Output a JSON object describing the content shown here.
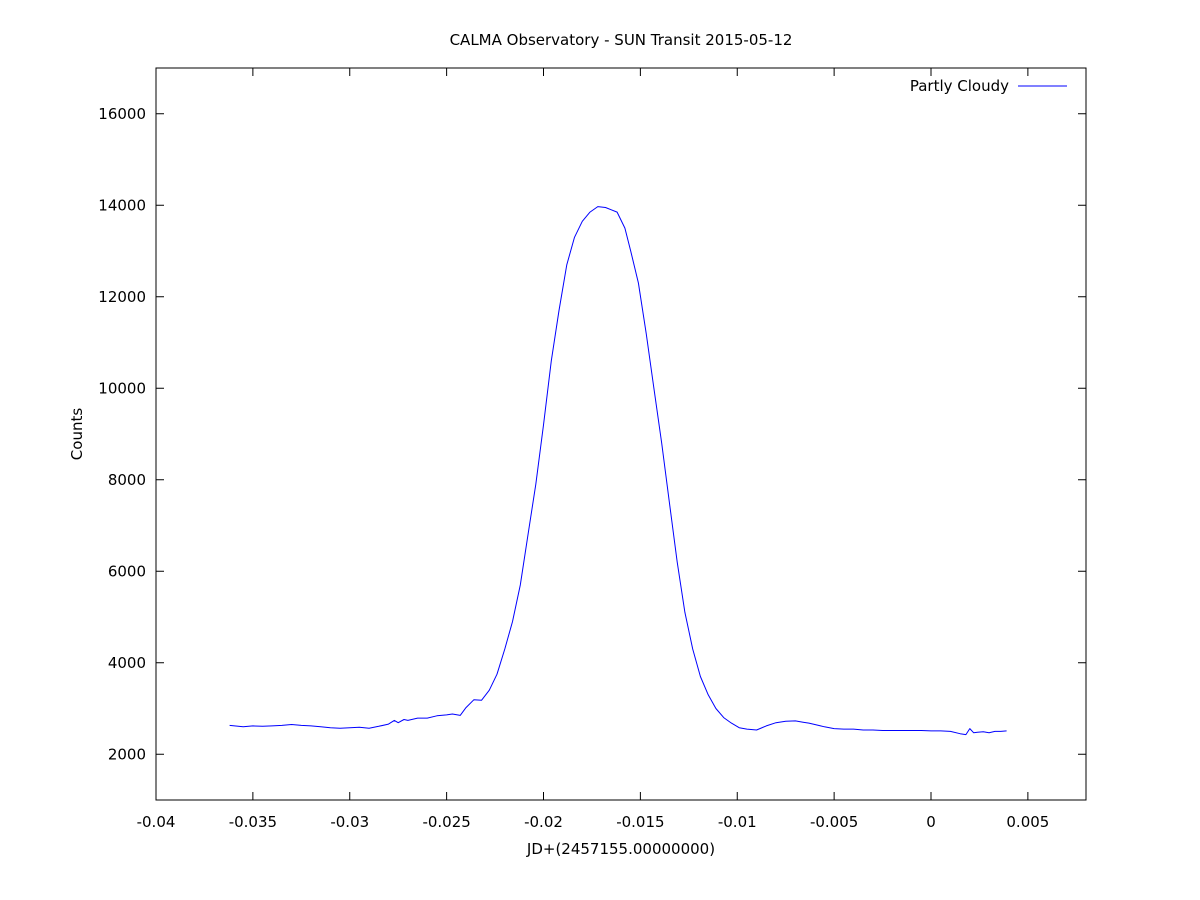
{
  "chart_data": {
    "type": "line",
    "title": "CALMA Observatory - SUN Transit 2015-05-12",
    "xlabel": "JD+(2457155.00000000)",
    "ylabel": "Counts",
    "xlim": [
      -0.04,
      0.008
    ],
    "ylim": [
      1000,
      17000
    ],
    "grid": false,
    "legend_position": "top-right",
    "x_ticks": [
      -0.04,
      -0.035,
      -0.03,
      -0.025,
      -0.02,
      -0.015,
      -0.01,
      -0.005,
      0,
      0.005
    ],
    "x_tick_labels": [
      "-0.04",
      "-0.035",
      "-0.03",
      "-0.025",
      "-0.02",
      "-0.015",
      "-0.01",
      "-0.005",
      "0",
      "0.005"
    ],
    "y_ticks": [
      2000,
      4000,
      6000,
      8000,
      10000,
      12000,
      14000,
      16000
    ],
    "y_tick_labels": [
      "2000",
      "4000",
      "6000",
      "8000",
      "10000",
      "12000",
      "14000",
      "16000"
    ],
    "series": [
      {
        "name": "Partly Cloudy",
        "color": "#0000ff",
        "x": [
          -0.0362,
          -0.0355,
          -0.035,
          -0.0345,
          -0.034,
          -0.0335,
          -0.033,
          -0.0325,
          -0.032,
          -0.0315,
          -0.031,
          -0.0305,
          -0.03,
          -0.0295,
          -0.029,
          -0.0285,
          -0.028,
          -0.0277,
          -0.0275,
          -0.0272,
          -0.027,
          -0.0265,
          -0.026,
          -0.0255,
          -0.025,
          -0.0247,
          -0.0243,
          -0.024,
          -0.0236,
          -0.0232,
          -0.0228,
          -0.0224,
          -0.022,
          -0.0216,
          -0.0212,
          -0.0208,
          -0.0204,
          -0.02,
          -0.0196,
          -0.0192,
          -0.0188,
          -0.0184,
          -0.018,
          -0.0176,
          -0.0172,
          -0.0168,
          -0.0165,
          -0.0162,
          -0.0158,
          -0.0155,
          -0.0151,
          -0.0147,
          -0.0143,
          -0.0139,
          -0.0135,
          -0.0131,
          -0.0127,
          -0.0123,
          -0.0119,
          -0.0115,
          -0.0111,
          -0.0107,
          -0.0103,
          -0.0099,
          -0.0095,
          -0.009,
          -0.0085,
          -0.008,
          -0.0075,
          -0.007,
          -0.0066,
          -0.0063,
          -0.006,
          -0.0057,
          -0.0055,
          -0.005,
          -0.0045,
          -0.004,
          -0.0035,
          -0.003,
          -0.0025,
          -0.002,
          -0.0015,
          -0.001,
          -0.0005,
          0,
          0.0005,
          0.001,
          0.0015,
          0.0018,
          0.002,
          0.0022,
          0.0024,
          0.0027,
          0.003,
          0.0033,
          0.0036,
          0.0039
        ],
        "y": [
          2630,
          2600,
          2620,
          2610,
          2620,
          2630,
          2650,
          2630,
          2620,
          2600,
          2580,
          2570,
          2580,
          2590,
          2570,
          2610,
          2660,
          2740,
          2690,
          2760,
          2740,
          2790,
          2790,
          2840,
          2860,
          2880,
          2850,
          3020,
          3190,
          3180,
          3400,
          3750,
          4300,
          4900,
          5700,
          6800,
          7900,
          9200,
          10600,
          11700,
          12700,
          13300,
          13650,
          13850,
          13970,
          13950,
          13900,
          13850,
          13500,
          13000,
          12300,
          11200,
          10000,
          8800,
          7500,
          6200,
          5100,
          4300,
          3700,
          3300,
          3000,
          2800,
          2680,
          2580,
          2550,
          2530,
          2620,
          2690,
          2720,
          2730,
          2700,
          2680,
          2650,
          2620,
          2600,
          2560,
          2550,
          2550,
          2530,
          2530,
          2520,
          2520,
          2520,
          2520,
          2520,
          2510,
          2510,
          2500,
          2450,
          2430,
          2560,
          2470,
          2480,
          2490,
          2470,
          2500,
          2500,
          2510
        ]
      }
    ]
  }
}
